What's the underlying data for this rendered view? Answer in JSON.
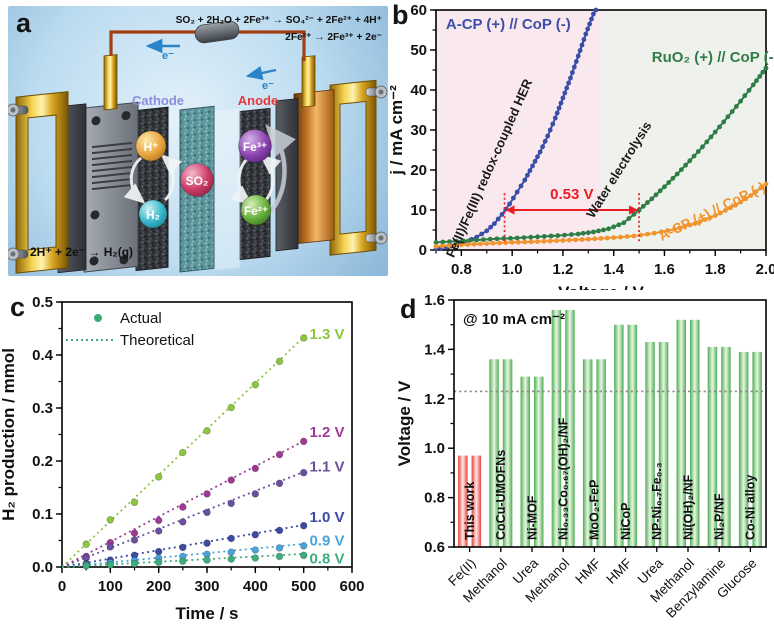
{
  "panels": {
    "a": {
      "label": "a",
      "equations": {
        "anode_top": "SO₂ + 2H₂O + 2Fe³⁺ → SO₄²⁻ + 2Fe²⁺ + 4H⁺",
        "anode_bottom": "2Fe²⁺ → 2Fe³⁺ + 2e⁻",
        "cathode": "2H⁺ + 2e⁻ → H₂(g)"
      },
      "labels": {
        "cathode": "Cathode",
        "anode": "Anode",
        "electron": "e⁻"
      },
      "species": [
        {
          "name": "proton",
          "label": "H⁺",
          "color": "#e8a33d"
        },
        {
          "name": "hydrogen",
          "label": "H₂",
          "color": "#35b6c9"
        },
        {
          "name": "sulfur-dioxide",
          "label": "SO₂",
          "color": "#cc3a66"
        },
        {
          "name": "ferric-ion",
          "label": "Fe³⁺",
          "color": "#8a42ae"
        },
        {
          "name": "ferrous-ion",
          "label": "Fe²⁺",
          "color": "#67b03c"
        }
      ]
    },
    "b": {
      "label": "b"
    },
    "c": {
      "label": "c"
    },
    "d": {
      "label": "d"
    }
  },
  "chart_data": [
    {
      "panel": "b",
      "type": "line",
      "xlabel": "Voltage / V",
      "ylabel": "j / mA cm⁻²",
      "xlim": [
        0.7,
        2.0
      ],
      "ylim": [
        0,
        60
      ],
      "xticks": [
        "0.8",
        "1.0",
        "1.2",
        "1.4",
        "1.6",
        "1.8",
        "2.0"
      ],
      "yticks": [
        "0",
        "10",
        "20",
        "30",
        "40",
        "50",
        "60"
      ],
      "x_minor_step": 0.1,
      "y_minor_step": 5,
      "regions": [
        {
          "x0": 0.7,
          "x1": 1.35,
          "color": "#f9e9ee"
        },
        {
          "x0": 1.35,
          "x1": 2.0,
          "color": "#eff2ec"
        }
      ],
      "series": [
        {
          "name": "A-CP (+) // CoP (-) Fe(II)/Fe(III) redox-coupled HER",
          "color": "#3a4ea8",
          "points": [
            [
              0.7,
              0.3
            ],
            [
              0.74,
              0.7
            ],
            [
              0.78,
              1.3
            ],
            [
              0.82,
              2.1
            ],
            [
              0.86,
              3.2
            ],
            [
              0.9,
              4.8
            ],
            [
              0.93,
              6.6
            ],
            [
              0.96,
              8.9
            ],
            [
              0.99,
              11.5
            ],
            [
              1.02,
              14.5
            ],
            [
              1.05,
              17.5
            ],
            [
              1.08,
              21
            ],
            [
              1.11,
              24.5
            ],
            [
              1.14,
              28.5
            ],
            [
              1.17,
              33
            ],
            [
              1.2,
              38
            ],
            [
              1.23,
              43
            ],
            [
              1.26,
              48.5
            ],
            [
              1.29,
              54
            ],
            [
              1.32,
              59
            ],
            [
              1.33,
              60
            ]
          ]
        },
        {
          "name": "RuO₂ (+) // CoP (-) water electrolysis",
          "color": "#2f7d46",
          "points": [
            [
              0.7,
              1.9
            ],
            [
              0.78,
              2.2
            ],
            [
              0.86,
              2.5
            ],
            [
              0.94,
              2.8
            ],
            [
              1.02,
              3.0
            ],
            [
              1.1,
              3.3
            ],
            [
              1.18,
              3.6
            ],
            [
              1.26,
              4.0
            ],
            [
              1.32,
              4.5
            ],
            [
              1.38,
              5.3
            ],
            [
              1.44,
              6.8
            ],
            [
              1.5,
              10
            ],
            [
              1.55,
              12.8
            ],
            [
              1.6,
              15.8
            ],
            [
              1.65,
              19
            ],
            [
              1.7,
              22.3
            ],
            [
              1.75,
              25.8
            ],
            [
              1.8,
              29.5
            ],
            [
              1.85,
              33.3
            ],
            [
              1.9,
              37.2
            ],
            [
              1.95,
              41.3
            ],
            [
              2.0,
              45.5
            ]
          ]
        },
        {
          "name": "A-CP (+) // CoP (-) water electrolysis",
          "color": "#f0942e",
          "points": [
            [
              0.7,
              0.9
            ],
            [
              0.8,
              1.3
            ],
            [
              0.9,
              1.6
            ],
            [
              1.0,
              1.9
            ],
            [
              1.1,
              2.1
            ],
            [
              1.2,
              2.4
            ],
            [
              1.3,
              2.7
            ],
            [
              1.4,
              3.1
            ],
            [
              1.48,
              3.5
            ],
            [
              1.56,
              4.2
            ],
            [
              1.64,
              5.2
            ],
            [
              1.72,
              6.6
            ],
            [
              1.8,
              8.6
            ],
            [
              1.88,
              11.2
            ],
            [
              1.94,
              13.6
            ],
            [
              2.0,
              16.5
            ]
          ]
        }
      ],
      "annotations": {
        "gap": {
          "label": "0.53 V",
          "y": 10,
          "x0": 0.97,
          "x1": 1.5,
          "color": "#ec1c24"
        },
        "texts": [
          {
            "text": "A-CP (+) // CoP (-)",
            "color": "#3a4ea8",
            "x": 0.985,
            "y": 55.2,
            "rotate": 0,
            "size": 15
          },
          {
            "text": "RuO₂ (+) // CoP (-)",
            "color": "#2f7d46",
            "x": 1.8,
            "y": 47,
            "rotate": 0,
            "size": 15
          },
          {
            "text": "Fe(II)/Fe(III) redox-coupled HER",
            "color": "#1a1a1a",
            "x": 0.925,
            "y": 20,
            "rotate": -66,
            "size": 13
          },
          {
            "text": "Water electrolysis",
            "color": "#1a1a1a",
            "x": 1.435,
            "y": 19.5,
            "rotate": -58,
            "size": 13
          },
          {
            "text": "A-CP (+) // CoP (-)",
            "color": "#f0942e",
            "x": 1.795,
            "y": 8.6,
            "rotate": -26,
            "size": 14
          }
        ]
      }
    },
    {
      "panel": "c",
      "type": "scatter",
      "xlabel": "Time / s",
      "ylabel": "H₂ production / mmol",
      "xlim": [
        0,
        600
      ],
      "ylim": [
        0,
        0.5
      ],
      "xticks": [
        "0",
        "100",
        "200",
        "300",
        "400",
        "500",
        "600"
      ],
      "yticks": [
        "0.0",
        "0.1",
        "0.2",
        "0.3",
        "0.4",
        "0.5"
      ],
      "x_minor_step": 50,
      "y_minor_step": 0.05,
      "legend": {
        "color": "#3aad74",
        "items": [
          {
            "marker": "dot",
            "label": "Actual"
          },
          {
            "marker": "dotted-line",
            "label": "Theoretical"
          }
        ]
      },
      "series": [
        {
          "label": "1.3 V",
          "color": "#8dc63f",
          "theo_end": 0.438,
          "label_y": 0.44,
          "points": [
            [
              50,
              0.043
            ],
            [
              100,
              0.089
            ],
            [
              150,
              0.122
            ],
            [
              200,
              0.17
            ],
            [
              250,
              0.216
            ],
            [
              300,
              0.257
            ],
            [
              350,
              0.301
            ],
            [
              400,
              0.344
            ],
            [
              450,
              0.388
            ],
            [
              500,
              0.432
            ]
          ]
        },
        {
          "label": "1.2 V",
          "color": "#9e3a96",
          "theo_end": 0.24,
          "label_y": 0.255,
          "points": [
            [
              50,
              0.02
            ],
            [
              100,
              0.046
            ],
            [
              150,
              0.064
            ],
            [
              200,
              0.088
            ],
            [
              250,
              0.113
            ],
            [
              300,
              0.138
            ],
            [
              350,
              0.164
            ],
            [
              400,
              0.186
            ],
            [
              450,
              0.212
            ],
            [
              500,
              0.237
            ]
          ]
        },
        {
          "label": "1.1 V",
          "color": "#6a4fa0",
          "theo_end": 0.181,
          "label_y": 0.19,
          "points": [
            [
              50,
              0.017
            ],
            [
              100,
              0.038
            ],
            [
              150,
              0.051
            ],
            [
              200,
              0.068
            ],
            [
              250,
              0.085
            ],
            [
              300,
              0.103
            ],
            [
              350,
              0.12
            ],
            [
              400,
              0.138
            ],
            [
              450,
              0.158
            ],
            [
              500,
              0.178
            ]
          ]
        },
        {
          "label": "1.0 V",
          "color": "#3b4aa2",
          "theo_end": 0.08,
          "label_y": 0.094,
          "points": [
            [
              50,
              0.006
            ],
            [
              100,
              0.013
            ],
            [
              150,
              0.022
            ],
            [
              200,
              0.029
            ],
            [
              250,
              0.037
            ],
            [
              300,
              0.045
            ],
            [
              350,
              0.054
            ],
            [
              400,
              0.061
            ],
            [
              450,
              0.069
            ],
            [
              500,
              0.078
            ]
          ]
        },
        {
          "label": "0.9 V",
          "color": "#4aa4da",
          "theo_end": 0.044,
          "label_y": 0.05,
          "points": [
            [
              50,
              0.004
            ],
            [
              100,
              0.008
            ],
            [
              150,
              0.012
            ],
            [
              200,
              0.017
            ],
            [
              250,
              0.02
            ],
            [
              300,
              0.024
            ],
            [
              350,
              0.028
            ],
            [
              400,
              0.032
            ],
            [
              450,
              0.036
            ],
            [
              500,
              0.04
            ]
          ]
        },
        {
          "label": "0.8 V",
          "color": "#3cae7c",
          "theo_end": 0.025,
          "label_y": 0.016,
          "points": [
            [
              50,
              0.002
            ],
            [
              100,
              0.004
            ],
            [
              150,
              0.006
            ],
            [
              200,
              0.009
            ],
            [
              250,
              0.011
            ],
            [
              300,
              0.013
            ],
            [
              350,
              0.015
            ],
            [
              400,
              0.017
            ],
            [
              450,
              0.02
            ],
            [
              500,
              0.022
            ]
          ]
        }
      ]
    },
    {
      "panel": "d",
      "type": "bar",
      "ylabel": "Voltage / V",
      "ylim": [
        0.6,
        1.6
      ],
      "yticks": [
        "0.6",
        "0.8",
        "1.0",
        "1.2",
        "1.4",
        "1.6"
      ],
      "y_minor_step": 0.1,
      "annotation": "@ 10 mA cm⁻²",
      "reference_line": {
        "y": 1.23,
        "color": "#8a8a8a"
      },
      "categories": [
        "Fe(II)",
        "Methanol",
        "Urea",
        "Methanol",
        "HMF",
        "HMF",
        "Urea",
        "Methanol",
        "Benzylamine",
        "Glucose"
      ],
      "bars": [
        {
          "label": "This work",
          "value": 0.97,
          "highlight": true
        },
        {
          "label": "CoCu-UMOFNs",
          "value": 1.36
        },
        {
          "label": "Ni-MOF",
          "value": 1.29
        },
        {
          "label": "Ni₀.₃₃Co₀.₆₇(OH)₂/NF",
          "value": 1.56
        },
        {
          "label": "MoO₂-FeP",
          "value": 1.36
        },
        {
          "label": "NiCoP",
          "value": 1.5
        },
        {
          "label": "NP-Ni₀.₇Fe₀.₃",
          "value": 1.43
        },
        {
          "label": "Ni(OH)₂/NF",
          "value": 1.52
        },
        {
          "label": "Ni₂P/NF",
          "value": 1.41
        },
        {
          "label": "Co-Ni alloy",
          "value": 1.39
        }
      ],
      "colors": {
        "highlight": "#e8413a",
        "default": "#4fae54"
      }
    }
  ]
}
